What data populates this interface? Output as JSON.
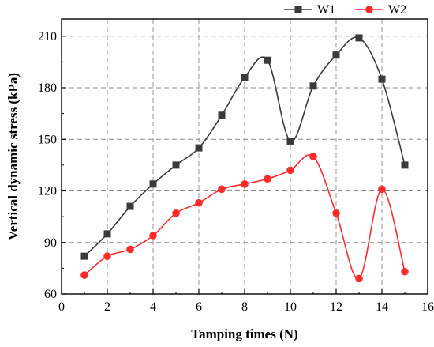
{
  "chart_data": {
    "type": "line",
    "xlabel": "Tamping times (N)",
    "ylabel": "Vertical dynamic stress (kPa)",
    "xlim": [
      0,
      16
    ],
    "ylim": [
      60,
      220
    ],
    "xticks": [
      0,
      2,
      4,
      6,
      8,
      10,
      12,
      14,
      16
    ],
    "yticks": [
      60,
      90,
      120,
      150,
      180,
      210
    ],
    "grid": true,
    "legend_position": "top-right",
    "series": [
      {
        "name": "W1",
        "color": "#3a3a3a",
        "marker": "square",
        "x": [
          1,
          2,
          3,
          4,
          5,
          6,
          7,
          8,
          9,
          10,
          11,
          12,
          13,
          14,
          15
        ],
        "y": [
          82,
          95,
          111,
          124,
          135,
          145,
          164,
          186,
          196,
          149,
          181,
          199,
          209,
          185,
          135
        ]
      },
      {
        "name": "W2",
        "color": "#ff2a2a",
        "marker": "circle",
        "x": [
          1,
          2,
          3,
          4,
          5,
          6,
          7,
          8,
          9,
          10,
          11,
          12,
          13,
          14,
          15
        ],
        "y": [
          71,
          82,
          86,
          94,
          107,
          113,
          121,
          124,
          127,
          132,
          140,
          107,
          69,
          121,
          73
        ]
      }
    ]
  }
}
